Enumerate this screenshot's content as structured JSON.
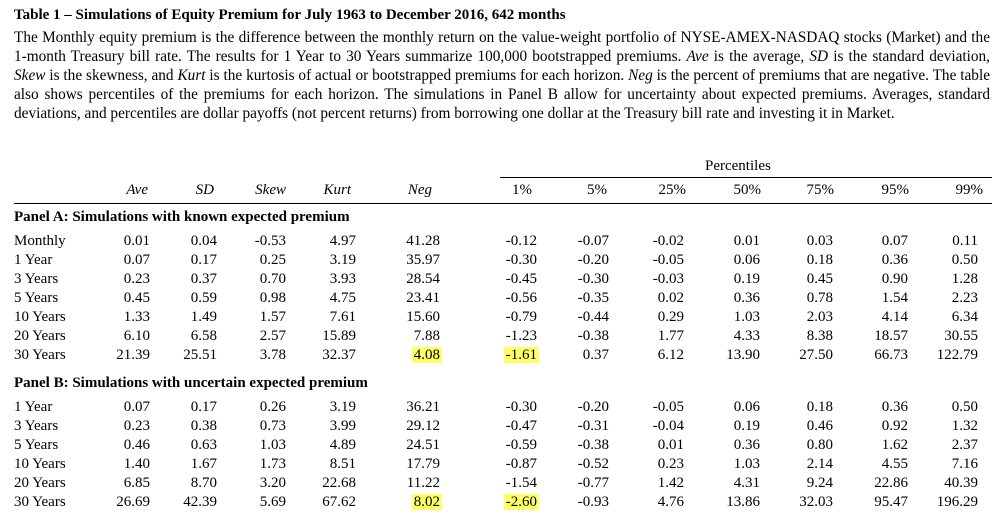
{
  "title": "Table 1 – Simulations of Equity Premium for July 1963 to December 2016, 642 months",
  "caption": [
    "The Monthly equity premium is the difference between the monthly return on the value-weight portfolio of NYSE-AMEX-NASDAQ stocks (Market) and the 1-month Treasury bill rate. The results for 1 Year to 30 Years summarize 100,000 bootstrapped premiums. ",
    "Ave",
    " is the average, ",
    "SD",
    " is the standard deviation, ",
    "Skew",
    " is the skewness, and ",
    "Kurt",
    " is the kurtosis of actual or bootstrapped premiums for each horizon. ",
    "Neg",
    " is the percent of premiums that are negative. The table also shows percentiles of the premiums for each horizon. The simulations in Panel B allow for uncertainty about expected premiums. Averages, standard deviations, and percentiles are dollar payoffs (not percent returns) from borrowing one dollar at the Treasury bill rate and investing it in Market."
  ],
  "percentiles_label": "Percentiles",
  "columns": [
    "Ave",
    "SD",
    "Skew",
    "Kurt",
    "Neg",
    "1%",
    "5%",
    "25%",
    "50%",
    "75%",
    "95%",
    "99%"
  ],
  "panels": [
    {
      "title": "Panel A: Simulations with known expected premium",
      "rows": [
        [
          "Monthly",
          "0.01",
          "0.04",
          "-0.53",
          "4.97",
          "41.28",
          "-0.12",
          "-0.07",
          "-0.02",
          "0.01",
          "0.03",
          "0.07",
          "0.11"
        ],
        [
          "1 Year",
          "0.07",
          "0.17",
          "0.25",
          "3.19",
          "35.97",
          "-0.30",
          "-0.20",
          "-0.05",
          "0.06",
          "0.18",
          "0.36",
          "0.50"
        ],
        [
          "3 Years",
          "0.23",
          "0.37",
          "0.70",
          "3.93",
          "28.54",
          "-0.45",
          "-0.30",
          "-0.03",
          "0.19",
          "0.45",
          "0.90",
          "1.28"
        ],
        [
          "5 Years",
          "0.45",
          "0.59",
          "0.98",
          "4.75",
          "23.41",
          "-0.56",
          "-0.35",
          "0.02",
          "0.36",
          "0.78",
          "1.54",
          "2.23"
        ],
        [
          "10 Years",
          "1.33",
          "1.49",
          "1.57",
          "7.61",
          "15.60",
          "-0.79",
          "-0.44",
          "0.29",
          "1.03",
          "2.03",
          "4.14",
          "6.34"
        ],
        [
          "20 Years",
          "6.10",
          "6.58",
          "2.57",
          "15.89",
          "7.88",
          "-1.23",
          "-0.38",
          "1.77",
          "4.33",
          "8.38",
          "18.57",
          "30.55"
        ],
        [
          "30 Years",
          "21.39",
          "25.51",
          "3.78",
          "32.37",
          "4.08",
          "-1.61",
          "0.37",
          "6.12",
          "13.90",
          "27.50",
          "66.73",
          "122.79"
        ]
      ]
    },
    {
      "title": "Panel B: Simulations with uncertain expected premium",
      "rows": [
        [
          "1 Year",
          "0.07",
          "0.17",
          "0.26",
          "3.19",
          "36.21",
          "-0.30",
          "-0.20",
          "-0.05",
          "0.06",
          "0.18",
          "0.36",
          "0.50"
        ],
        [
          "3 Years",
          "0.23",
          "0.38",
          "0.73",
          "3.99",
          "29.12",
          "-0.47",
          "-0.31",
          "-0.04",
          "0.19",
          "0.46",
          "0.92",
          "1.32"
        ],
        [
          "5 Years",
          "0.46",
          "0.63",
          "1.03",
          "4.89",
          "24.51",
          "-0.59",
          "-0.38",
          "0.01",
          "0.36",
          "0.80",
          "1.62",
          "2.37"
        ],
        [
          "10 Years",
          "1.40",
          "1.67",
          "1.73",
          "8.51",
          "17.79",
          "-0.87",
          "-0.52",
          "0.23",
          "1.03",
          "2.14",
          "4.55",
          "7.16"
        ],
        [
          "20 Years",
          "6.85",
          "8.70",
          "3.20",
          "22.68",
          "11.22",
          "-1.54",
          "-0.77",
          "1.42",
          "4.31",
          "9.24",
          "22.86",
          "40.39"
        ],
        [
          "30 Years",
          "26.69",
          "42.39",
          "5.69",
          "67.62",
          "8.02",
          "-2.60",
          "-0.93",
          "4.76",
          "13.86",
          "32.03",
          "95.47",
          "196.29"
        ]
      ]
    }
  ],
  "highlight_color": "#ffff66",
  "highlighted_cells": [
    {
      "panel": 0,
      "row": 6,
      "col": 5
    },
    {
      "panel": 1,
      "row": 5,
      "col": 5
    }
  ]
}
